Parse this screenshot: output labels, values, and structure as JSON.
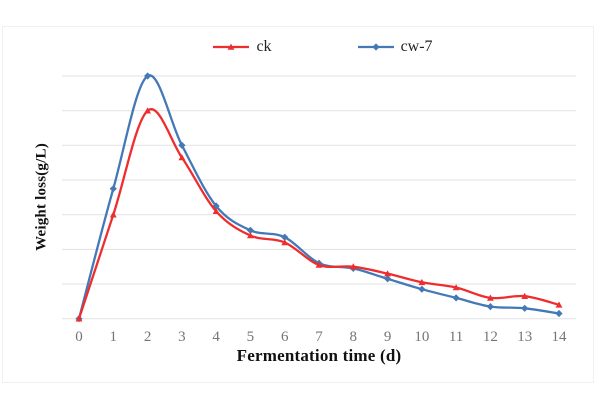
{
  "figure": {
    "background_color": "#ffffff",
    "border_color": "#f0f0f0"
  },
  "chart_data": {
    "type": "line",
    "title": "",
    "xlabel": "Fermentation time (d)",
    "ylabel": "Weight loss(g/L)",
    "x": [
      0,
      1,
      2,
      3,
      4,
      5,
      6,
      7,
      8,
      9,
      10,
      11,
      12,
      13,
      14
    ],
    "x_tick_labels": [
      "0",
      "1",
      "2",
      "3",
      "4",
      "5",
      "6",
      "7",
      "8",
      "9",
      "10",
      "11",
      "12",
      "13",
      "14"
    ],
    "series": [
      {
        "name": "ck",
        "color": "#ee2e2e",
        "marker": "triangle",
        "values": [
          0,
          3.0,
          6.0,
          4.65,
          3.1,
          2.4,
          2.2,
          1.55,
          1.5,
          1.3,
          1.05,
          0.9,
          0.6,
          0.65,
          0.4
        ]
      },
      {
        "name": "cw-7",
        "color": "#4379b7",
        "marker": "diamond",
        "values": [
          0,
          3.75,
          7.0,
          5.0,
          3.25,
          2.55,
          2.35,
          1.6,
          1.45,
          1.15,
          0.85,
          0.6,
          0.35,
          0.3,
          0.15
        ]
      }
    ],
    "ylim": [
      0,
      7
    ],
    "y_gridline_step": 1,
    "y_tick_labels_visible": false,
    "grid": "horizontal",
    "gridline_color": "#e2e2e2",
    "tick_label_color": "#757575",
    "legend_position": "top-center",
    "line_style": "smooth"
  }
}
